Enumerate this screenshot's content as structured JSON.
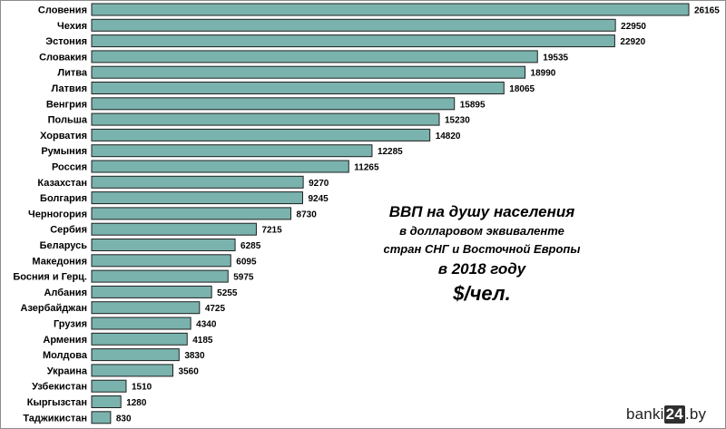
{
  "chart_data": {
    "type": "bar",
    "orientation": "horizontal",
    "categories": [
      "Словения",
      "Чехия",
      "Эстония",
      "Словакия",
      "Литва",
      "Латвия",
      "Венгрия",
      "Польша",
      "Хорватия",
      "Румыния",
      "Россия",
      "Казахстан",
      "Болгария",
      "Черногория",
      "Сербия",
      "Беларусь",
      "Македония",
      "Босния и Герц.",
      "Албания",
      "Азербайджан",
      "Грузия",
      "Армения",
      "Молдова",
      "Украина",
      "Узбекистан",
      "Кыргызстан",
      "Таджикистан"
    ],
    "values": [
      26165,
      22950,
      22920,
      19535,
      18990,
      18065,
      15895,
      15230,
      14820,
      12285,
      11265,
      9270,
      9245,
      8730,
      7215,
      6285,
      6095,
      5975,
      5255,
      4725,
      4340,
      4185,
      3830,
      3560,
      1510,
      1280,
      830
    ],
    "value_labels": [
      "26165",
      "22950",
      "22920",
      "19535",
      "18990",
      "18065",
      "15895",
      "15230",
      "14820",
      "12285",
      "11265",
      "9270",
      "9245",
      "8730",
      "7215",
      "6285",
      "6095",
      "5975",
      "5255",
      "4725",
      "4340",
      "4185",
      "3830",
      "3560",
      "1510",
      "1280",
      "830"
    ],
    "title_lines": [
      "ВВП на душу населения",
      "в долларовом эквиваленте",
      "стран СНГ и Восточной Европы",
      "в 2018 году",
      "$/чел."
    ],
    "bar_color": "#7ab3ad",
    "grid": false,
    "legend": "none"
  },
  "watermark": {
    "text_before": "banki",
    "text_box": "24",
    "text_after": ".by"
  }
}
